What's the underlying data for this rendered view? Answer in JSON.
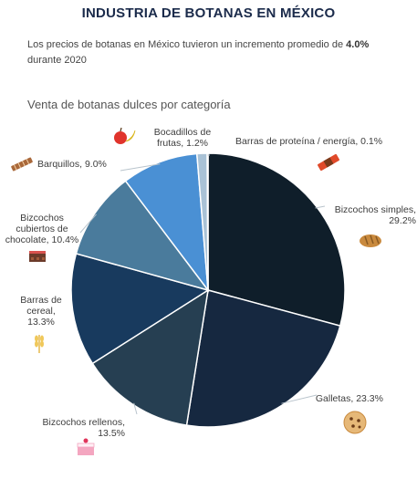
{
  "header": {
    "title": "INDUSTRIA DE BOTANAS EN MÉXICO",
    "description_prefix": "Los precios de botanas en México tuvieron un incremento promedio de ",
    "description_highlight": "4.0%",
    "description_suffix": " durante 2020"
  },
  "chart_data": {
    "type": "pie",
    "title": "Venta de botanas dulces por categoría",
    "slices": [
      {
        "name": "Bizcochos simples",
        "label_lines": [
          "Bizcochos simples,",
          "29.2%"
        ],
        "value": 29.2,
        "color": "#0f1e2a",
        "icon": "bread-icon"
      },
      {
        "name": "Galletas",
        "label_lines": [
          "Galletas, 23.3%"
        ],
        "value": 23.3,
        "color": "#162840",
        "icon": "cookie-icon"
      },
      {
        "name": "Bizcochos rellenos",
        "label_lines": [
          "Bizcochos rellenos,",
          "13.5%"
        ],
        "value": 13.5,
        "color": "#263f52",
        "icon": "cake-icon"
      },
      {
        "name": "Barras de cereal",
        "label_lines": [
          "Barras de",
          "cereal,",
          "13.3%"
        ],
        "value": 13.3,
        "color": "#183a5e",
        "icon": "wheat-icon"
      },
      {
        "name": "Bizcochos cubiertos de chocolate",
        "label_lines": [
          "Bizcochos",
          "cubiertos de",
          "chocolate, 10.4%"
        ],
        "value": 10.4,
        "color": "#4a7b9c",
        "icon": "chocolate-cake-icon"
      },
      {
        "name": "Barquillos",
        "label_lines": [
          "Barquillos, 9.0%"
        ],
        "value": 9.0,
        "color": "#4a90d4",
        "icon": "wafer-icon"
      },
      {
        "name": "Bocadillos de frutas",
        "label_lines": [
          "Bocadillos de",
          "frutas, 1.2%"
        ],
        "value": 1.2,
        "color": "#a9c2d6",
        "icon": "fruit-icon"
      },
      {
        "name": "Barras de proteína / energía",
        "label_lines": [
          "Barras de proteína / energía, 0.1%"
        ],
        "value": 0.1,
        "color": "#d4dde6",
        "icon": "protein-bar-icon"
      }
    ]
  }
}
